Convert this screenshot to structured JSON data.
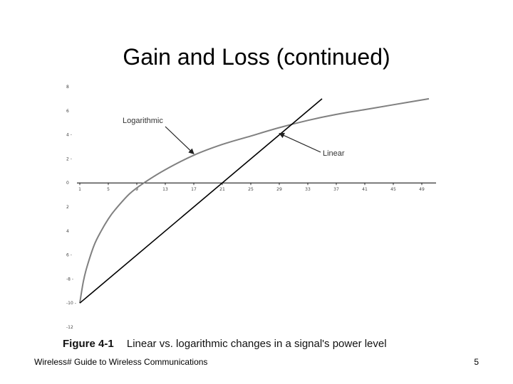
{
  "slide": {
    "title": "Gain and Loss (continued)",
    "footer": "Wireless# Guide to Wireless Communications",
    "page_number": "5"
  },
  "figure": {
    "label": "Figure 4-1",
    "caption": "Linear vs. logarithmic changes in a signal's power level"
  },
  "chart_data": {
    "type": "line",
    "title": "",
    "xlabel": "",
    "ylabel": "",
    "x_ticks": [
      "1",
      "5",
      "9",
      "13",
      "17",
      "21",
      "25",
      "29",
      "33",
      "37",
      "41",
      "45",
      "49"
    ],
    "y_ticks": [
      "8",
      "6",
      "4 -",
      "2 -",
      "0",
      "2",
      "4",
      "6 -",
      "-8 -",
      "-10 -",
      "-12"
    ],
    "y_tick_values": [
      8,
      6,
      4,
      2,
      0,
      -2,
      -4,
      -6,
      -8,
      -10,
      -12
    ],
    "xlim": [
      1,
      51
    ],
    "ylim": [
      -12,
      8
    ],
    "grid": false,
    "series": [
      {
        "name": "Logarithmic",
        "color": "#808080",
        "x": [
          1,
          1.5,
          2,
          3,
          4,
          5,
          6,
          8,
          10,
          13,
          17,
          21,
          25,
          29,
          33,
          37,
          41,
          45,
          50
        ],
        "y": [
          -10,
          -8.2,
          -7,
          -5.2,
          -4,
          -3,
          -2.2,
          -0.9,
          0,
          1.1,
          2.3,
          3.2,
          3.9,
          4.6,
          5.2,
          5.7,
          6.1,
          6.5,
          7.0
        ]
      },
      {
        "name": "Linear",
        "color": "#000000",
        "x": [
          1,
          35
        ],
        "y": [
          -10,
          7
        ]
      }
    ],
    "annotations": [
      {
        "text": "Logarithmic",
        "target_series": "Logarithmic",
        "x": 17,
        "y": 2.3
      },
      {
        "text": "Linear",
        "target_series": "Linear",
        "x": 29,
        "y": 4
      }
    ]
  }
}
